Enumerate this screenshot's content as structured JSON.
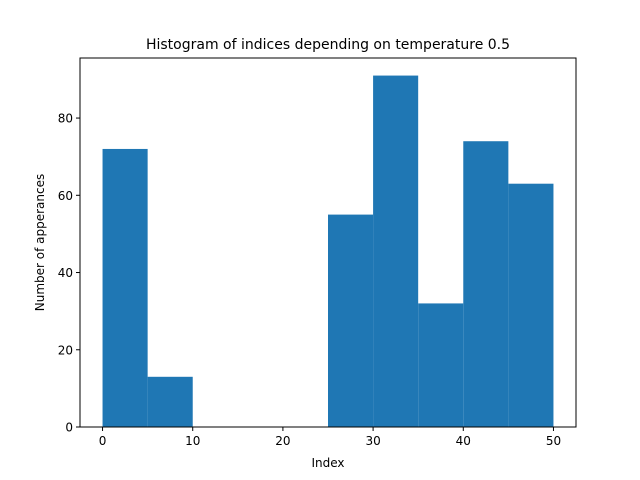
{
  "chart_data": {
    "type": "bar",
    "title": "Histogram of indices depending on temperature 0.5",
    "xlabel": "Index",
    "ylabel": "Number of apperances",
    "bar_color": "#1f77b4",
    "bins": [
      {
        "x0": 0,
        "x1": 5,
        "count": 72
      },
      {
        "x0": 5,
        "x1": 10,
        "count": 13
      },
      {
        "x0": 10,
        "x1": 15,
        "count": 0
      },
      {
        "x0": 15,
        "x1": 20,
        "count": 0
      },
      {
        "x0": 20,
        "x1": 25,
        "count": 0
      },
      {
        "x0": 25,
        "x1": 30,
        "count": 55
      },
      {
        "x0": 30,
        "x1": 35,
        "count": 91
      },
      {
        "x0": 35,
        "x1": 40,
        "count": 32
      },
      {
        "x0": 40,
        "x1": 45,
        "count": 74
      },
      {
        "x0": 45,
        "x1": 50,
        "count": 63
      }
    ],
    "xlim": [
      -2.5,
      52.5
    ],
    "ylim": [
      0,
      95.55
    ],
    "x_ticks": [
      0,
      10,
      20,
      30,
      40,
      50
    ],
    "y_ticks": [
      0,
      20,
      40,
      60,
      80
    ],
    "grid": false,
    "legend": "none"
  }
}
